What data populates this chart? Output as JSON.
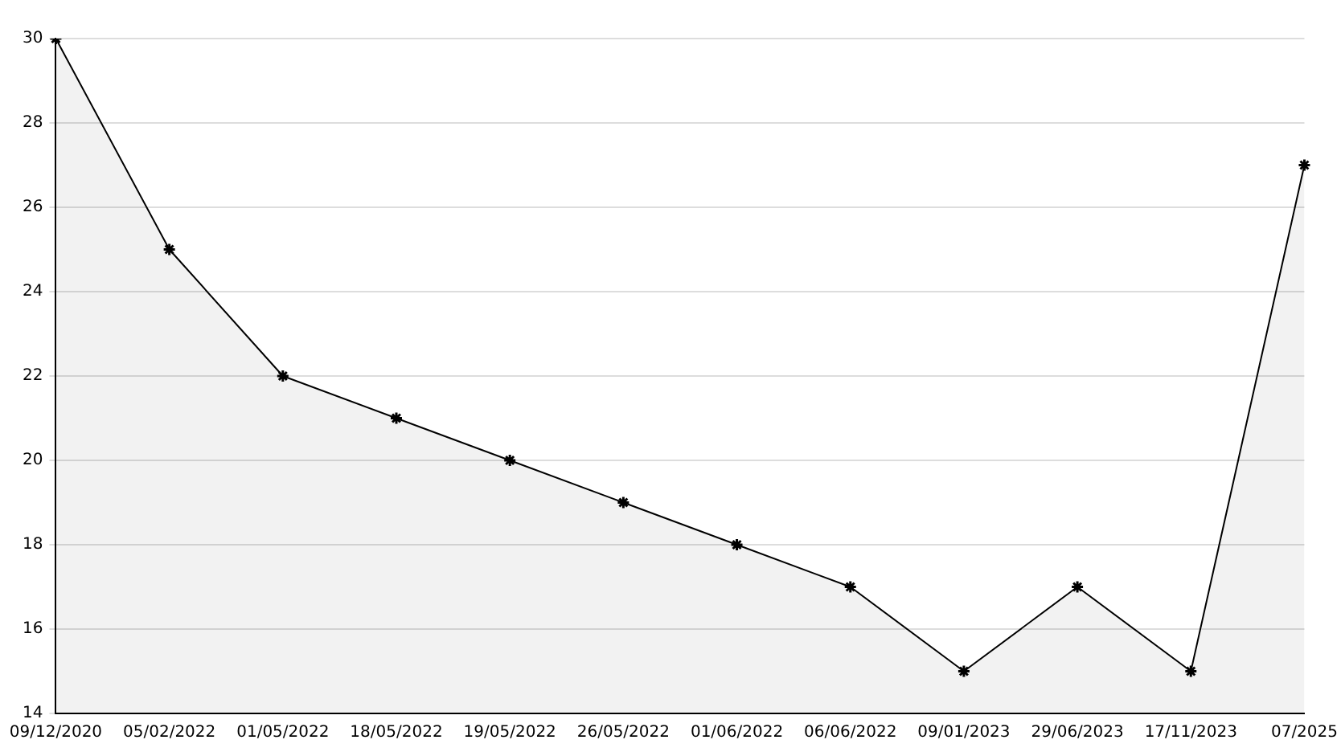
{
  "chart_data": {
    "type": "area",
    "categories": [
      "09/12/2020",
      "05/02/2022",
      "01/05/2022",
      "18/05/2022",
      "19/05/2022",
      "26/05/2022",
      "01/06/2022",
      "06/06/2022",
      "09/01/2023",
      "29/06/2023",
      "17/11/2023",
      "07/2025"
    ],
    "series": [
      {
        "color": "#000000",
        "values": [
          30,
          25,
          22,
          21,
          20,
          19,
          18,
          17,
          15,
          17,
          15,
          27
        ]
      }
    ],
    "ylim": [
      14,
      30
    ],
    "yticks": [
      14,
      16,
      18,
      20,
      22,
      24,
      26,
      28,
      30
    ],
    "grid": "y",
    "legend": false,
    "marker": "cross",
    "line_style": "solid"
  }
}
